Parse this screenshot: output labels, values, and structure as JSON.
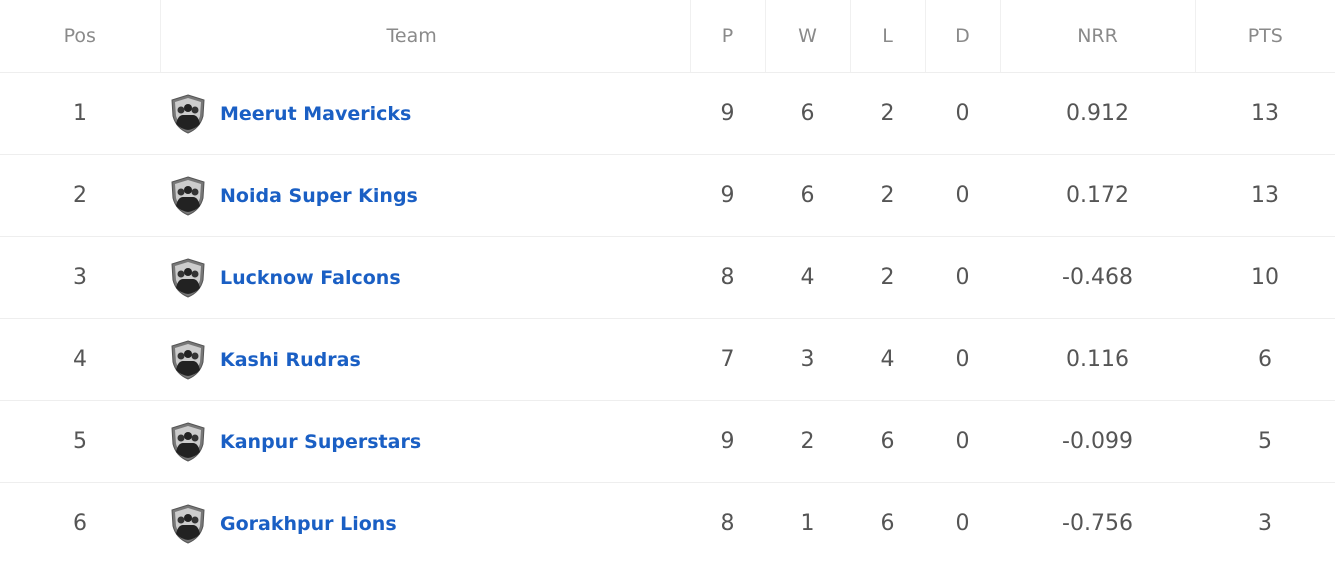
{
  "headers": {
    "pos": "Pos",
    "team": "Team",
    "p": "P",
    "w": "W",
    "l": "L",
    "d": "D",
    "nrr": "NRR",
    "pts": "PTS"
  },
  "rows": [
    {
      "pos": "1",
      "team": "Meerut Mavericks",
      "p": "9",
      "w": "6",
      "l": "2",
      "d": "0",
      "nrr": "0.912",
      "pts": "13"
    },
    {
      "pos": "2",
      "team": "Noida Super Kings",
      "p": "9",
      "w": "6",
      "l": "2",
      "d": "0",
      "nrr": "0.172",
      "pts": "13"
    },
    {
      "pos": "3",
      "team": "Lucknow Falcons",
      "p": "8",
      "w": "4",
      "l": "2",
      "d": "0",
      "nrr": "-0.468",
      "pts": "10"
    },
    {
      "pos": "4",
      "team": "Kashi Rudras",
      "p": "7",
      "w": "3",
      "l": "4",
      "d": "0",
      "nrr": "0.116",
      "pts": "6"
    },
    {
      "pos": "5",
      "team": "Kanpur Superstars",
      "p": "9",
      "w": "2",
      "l": "6",
      "d": "0",
      "nrr": "-0.099",
      "pts": "5"
    },
    {
      "pos": "6",
      "team": "Gorakhpur Lions",
      "p": "8",
      "w": "1",
      "l": "6",
      "d": "0",
      "nrr": "-0.756",
      "pts": "3"
    }
  ],
  "icon": "team-shield-icon",
  "colors": {
    "team_link": "#1a5fc4"
  }
}
